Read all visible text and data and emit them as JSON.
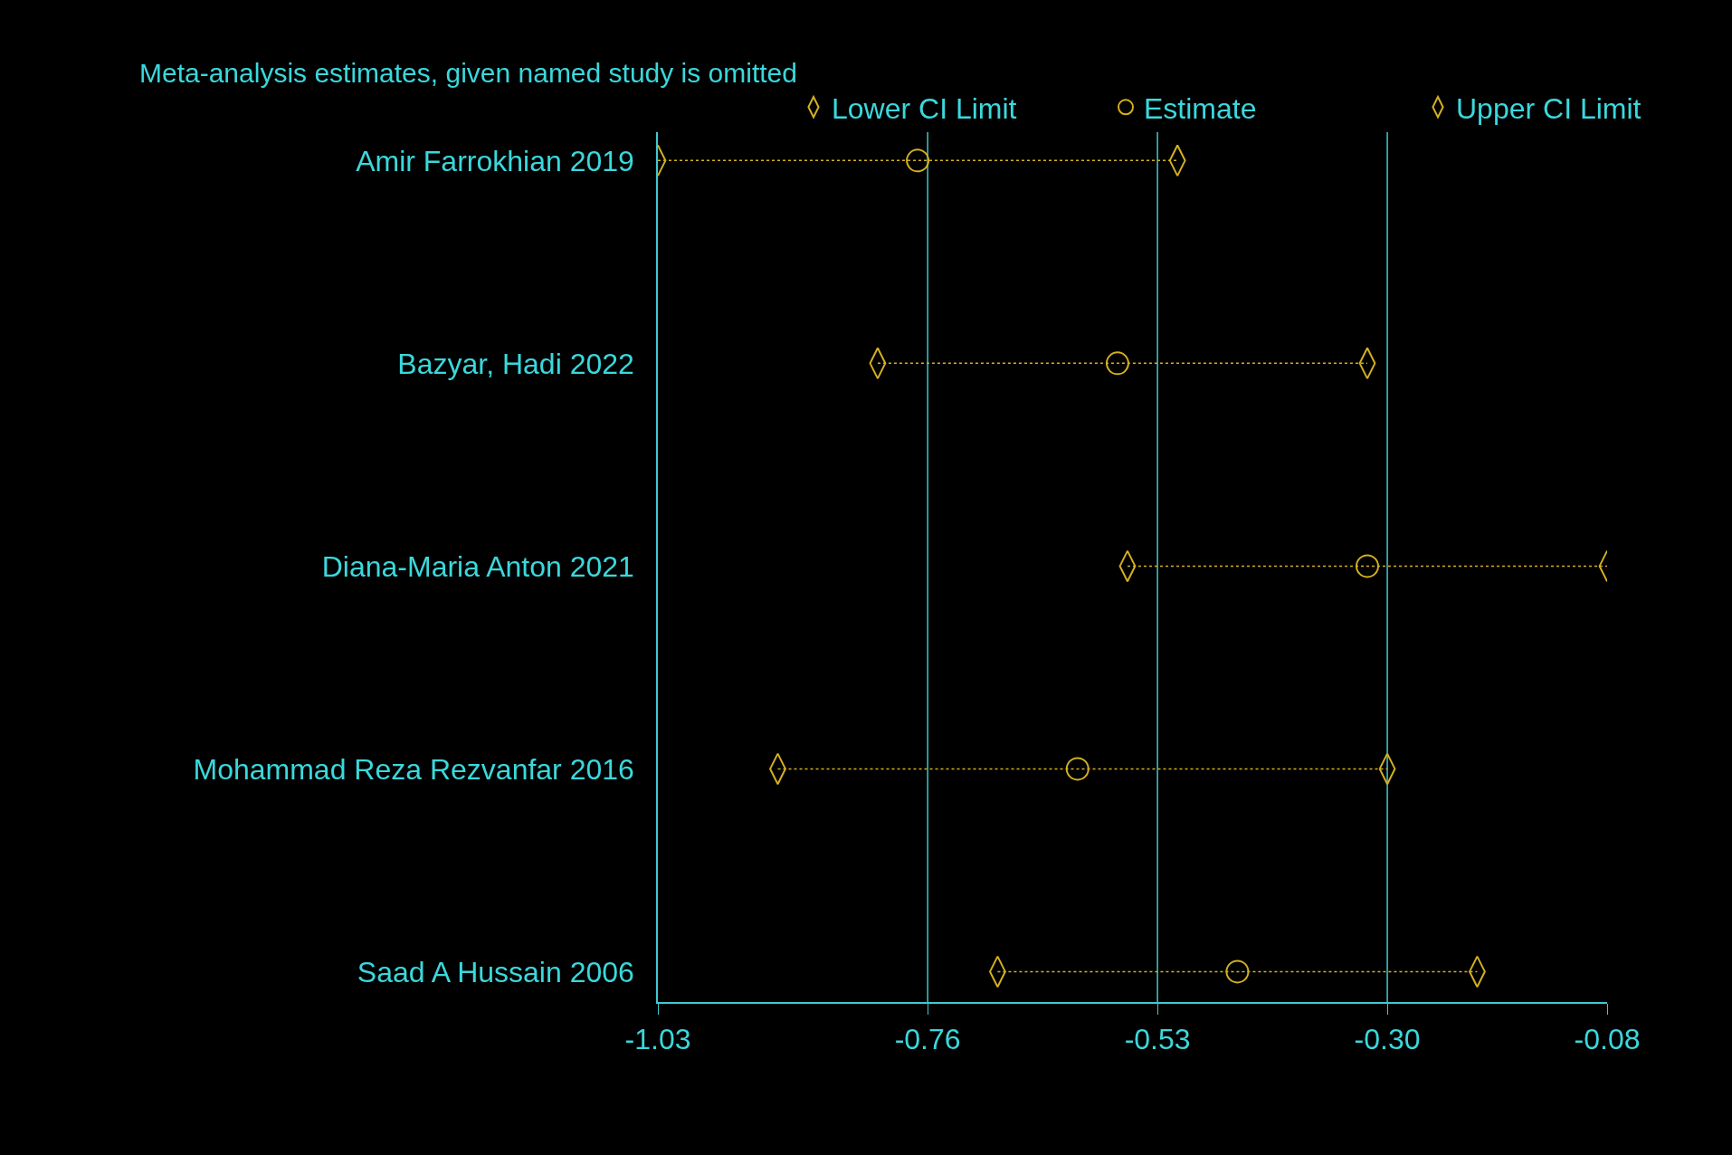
{
  "chart_data": {
    "type": "scatter",
    "orientation": "horizontal",
    "legend_title": "Meta-analysis estimates, given named study is omitted",
    "categories": [
      "Amir Farrokhian 2019",
      "Bazyar, Hadi 2022",
      "Diana-Maria Anton 2021",
      "Mohammad Reza Rezvanfar 2016",
      "Saad A Hussain 2006"
    ],
    "series": [
      {
        "name": "Lower CI Limit",
        "color": "#d4b020",
        "values": [
          -1.03,
          -0.81,
          -0.56,
          -0.91,
          -0.69
        ]
      },
      {
        "name": "Estimate",
        "color": "#d4b020",
        "marker": "circle",
        "values": [
          -0.77,
          -0.57,
          -0.32,
          -0.61,
          -0.45
        ]
      },
      {
        "name": "Upper CI Limit",
        "color": "#d4b020",
        "values": [
          -0.51,
          -0.32,
          -0.08,
          -0.3,
          -0.21
        ]
      }
    ],
    "line_style": "dotted",
    "xlim": [
      -1.03,
      -0.08
    ],
    "xticks": [
      {
        "value": -1.03,
        "label": "-1.03"
      },
      {
        "value": -0.76,
        "label": "-0.76"
      },
      {
        "value": -0.53,
        "label": "-0.53"
      },
      {
        "value": -0.3,
        "label": "-0.30"
      },
      {
        "value": -0.08,
        "label": "-0.08"
      }
    ],
    "ref_lines": [
      {
        "axis": "x",
        "value": -0.76,
        "color": "#40c8d0"
      },
      {
        "axis": "x",
        "value": -0.53,
        "color": "#40c8d0"
      },
      {
        "axis": "x",
        "value": -0.3,
        "color": "#40c8d0"
      }
    ],
    "legend": "top"
  }
}
